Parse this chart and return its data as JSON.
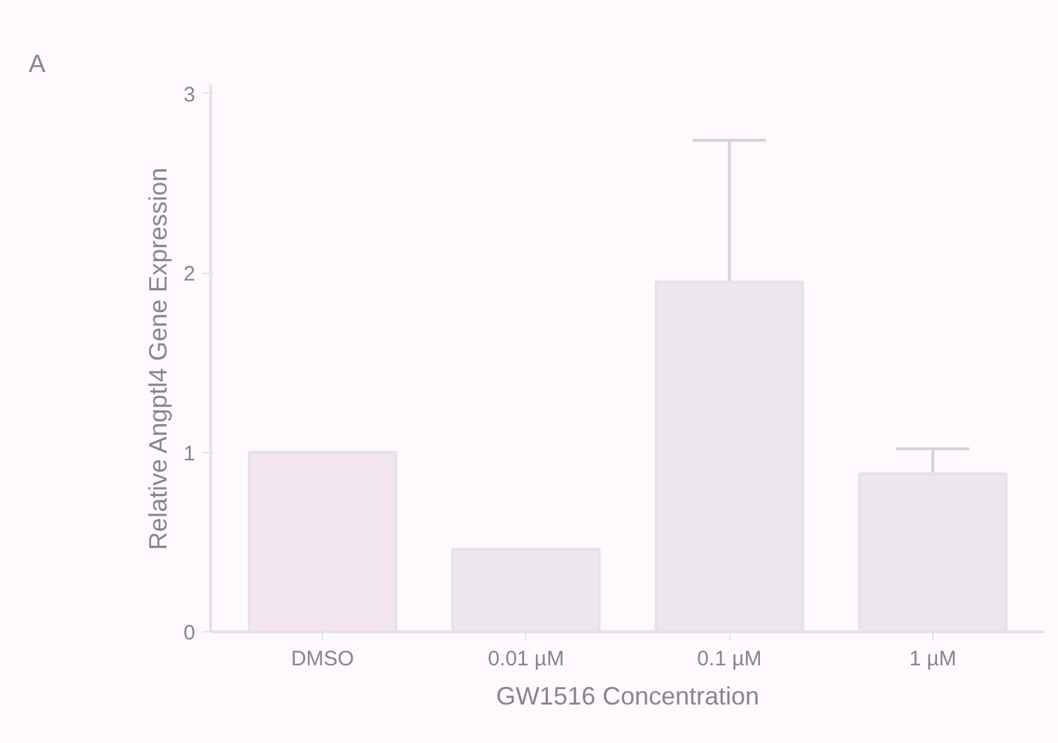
{
  "chart_data": {
    "type": "bar",
    "ylabel": "Relative Angptl4 Gene Expression",
    "xlabel": "GW1516 Concentration",
    "annotations": [
      "A"
    ],
    "categories": [
      "DMSO",
      "0.01 µM",
      "0.1 µM",
      "1 µM"
    ],
    "values": [
      1.0,
      0.46,
      1.95,
      0.88
    ],
    "colors": [
      "#f3e6ee",
      "#ece6ee",
      "#ece6ee",
      "#ece6ee"
    ],
    "errors": [
      null,
      null,
      0.79,
      0.14
    ],
    "ylim": [
      0,
      3.05
    ],
    "yticks": [
      0,
      1,
      2,
      3
    ],
    "grid": false
  }
}
